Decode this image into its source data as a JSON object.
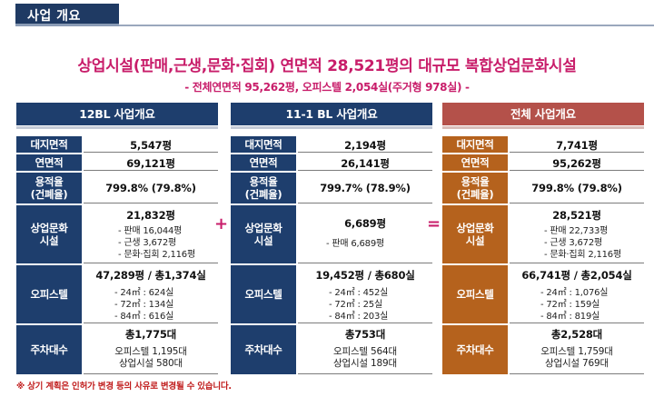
{
  "header": {
    "title": "사업 개요"
  },
  "headline": "상업시설(판매,근생,문화·집회) 연면적 28,521평의 대규모 복합상업문화시설",
  "subline": "- 전체연면적 95,262평, 오피스텔 2,054실(주거형 978실) -",
  "operators": {
    "plus": "+",
    "equals": "="
  },
  "columns": [
    {
      "title": "12BL 사업개요",
      "site_area": {
        "label": "대지면적",
        "value": "5,547평"
      },
      "floor_area": {
        "label": "연면적",
        "value": "69,121평"
      },
      "ratio": {
        "label1": "용적율",
        "label2": "(건폐율)",
        "value": "799.8%  (79.8%)"
      },
      "commercial": {
        "label1": "상업문화",
        "label2": "시설",
        "total": "21,832평",
        "items": [
          "- 판매 16,044평",
          "- 근생 3,672평",
          "- 문화·집회 2,116평"
        ]
      },
      "officetel": {
        "label": "오피스텔",
        "total": "47,289평 / 총1,374실",
        "items": [
          "- 24㎡ : 624실",
          "- 72㎡ : 134실",
          "- 84㎡ : 616실"
        ]
      },
      "parking": {
        "label": "주차대수",
        "total": "총1,775대",
        "items": [
          "오피스텔 1,195대",
          "상업시설 580대"
        ]
      }
    },
    {
      "title": "11-1 BL 사업개요",
      "site_area": {
        "label": "대지면적",
        "value": "2,194평"
      },
      "floor_area": {
        "label": "연면적",
        "value": "26,141평"
      },
      "ratio": {
        "label1": "용적율",
        "label2": "(건폐율)",
        "value": "799.7% (78.9%)"
      },
      "commercial": {
        "label1": "상업문화",
        "label2": "시설",
        "total": "6,689평",
        "items": [
          "- 판매 6,689평"
        ]
      },
      "officetel": {
        "label": "오피스텔",
        "total": "19,452평 / 총680실",
        "items": [
          "- 24㎡ : 452실",
          "- 72㎡ : 25실",
          "- 84㎡ : 203실"
        ]
      },
      "parking": {
        "label": "주차대수",
        "total": "총753대",
        "items": [
          "오피스텔 564대",
          "상업시설 189대"
        ]
      }
    },
    {
      "title": "전체 사업개요",
      "site_area": {
        "label": "대지면적",
        "value": "7,741평"
      },
      "floor_area": {
        "label": "연면적",
        "value": "95,262평"
      },
      "ratio": {
        "label1": "용적율",
        "label2": "(건폐율)",
        "value": "799.8%  (79.8%)"
      },
      "commercial": {
        "label1": "상업문화",
        "label2": "시설",
        "total": "28,521평",
        "items": [
          "- 판매 22,733평",
          "- 근생 3,672평",
          "- 문화·집회 2,116평"
        ]
      },
      "officetel": {
        "label": "오피스텔",
        "total": "66,741평 / 총2,054실",
        "items": [
          "- 24㎡ : 1,076실",
          "- 72㎡ : 159실",
          "- 84㎡ : 819실"
        ]
      },
      "parking": {
        "label": "주차대수",
        "total": "총2,528대",
        "items": [
          "오피스텔 1,759대",
          "상업시설 769대"
        ]
      }
    }
  ],
  "note": "※ 상기 계획은 인허가 변경 등의 사유로 변경될 수 있습니다."
}
